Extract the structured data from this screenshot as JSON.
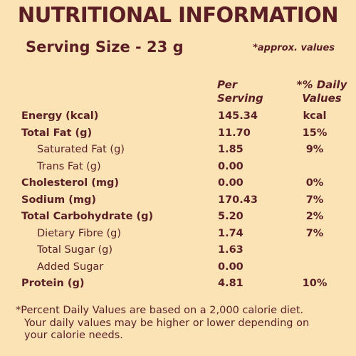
{
  "title": "NUTRITIONAL INFORMATION",
  "serving_size": "Serving Size  -  23 g",
  "approx_note": "*approx. values",
  "columns": {
    "per_serving": [
      "Per",
      "Serving"
    ],
    "daily_values": [
      "*% Daily",
      "Values"
    ]
  },
  "rows": [
    {
      "label": "Energy (kcal)",
      "value": "145.34",
      "dv": "kcal"
    },
    {
      "label": "Total Fat (g)",
      "value": "11.70",
      "dv": "15%"
    },
    {
      "label": "Saturated Fat (g)",
      "value": "1.85",
      "dv": "9%"
    },
    {
      "label": "Trans Fat (g)",
      "value": "0.00",
      "dv": ""
    },
    {
      "label": "Cholesterol (mg)",
      "value": "0.00",
      "dv": "0%"
    },
    {
      "label": "Sodium (mg)",
      "value": "170.43",
      "dv": "7%"
    },
    {
      "label": "Total Carbohydrate (g)",
      "value": "5.20",
      "dv": "2%"
    },
    {
      "label": "Dietary Fibre (g)",
      "value": "1.74",
      "dv": "7%"
    },
    {
      "label": "Total Sugar (g)",
      "value": "1.63",
      "dv": ""
    },
    {
      "label": "Added Sugar",
      "value": "0.00",
      "dv": ""
    },
    {
      "label": "Protein (g)",
      "value": "4.81",
      "dv": "10%"
    }
  ],
  "footnote": [
    "*Percent Daily Values are based on a 2,000 calorie diet.",
    "Your daily values may be higher or lower depending on",
    "your calorie needs."
  ],
  "colors": {
    "background": "#fbe3b5",
    "text": "#5a1e24"
  }
}
